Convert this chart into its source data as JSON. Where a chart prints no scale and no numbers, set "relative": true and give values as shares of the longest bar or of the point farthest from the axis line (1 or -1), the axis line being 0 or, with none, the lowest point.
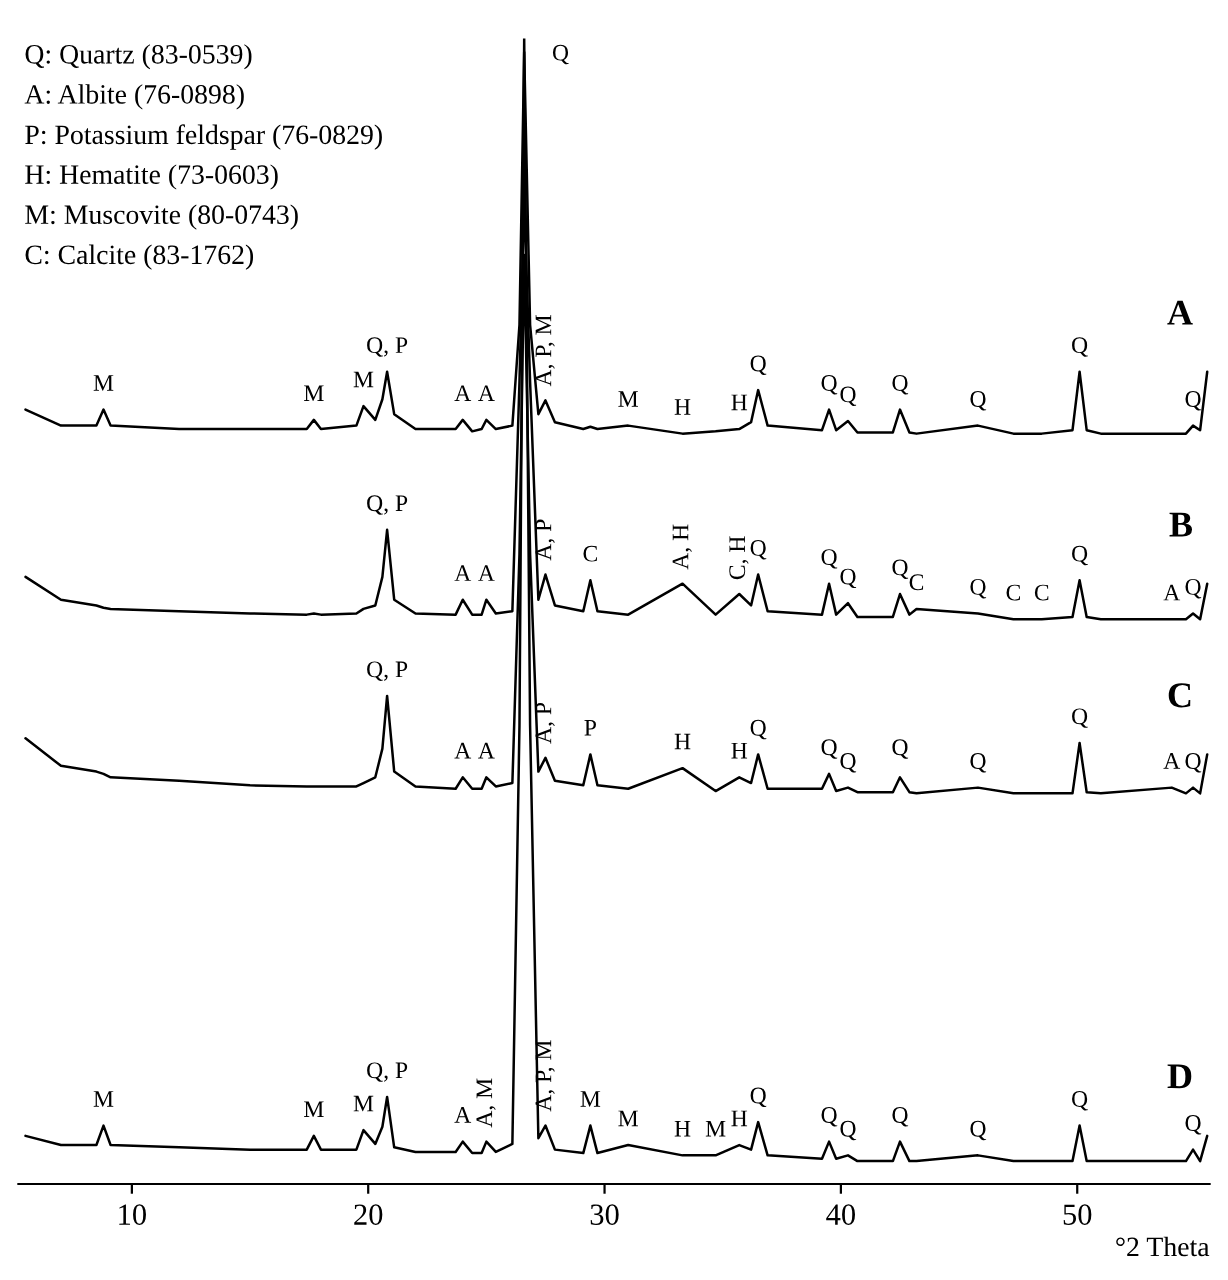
{
  "chart_data": {
    "type": "line",
    "relative": true,
    "xlabel": "°2 Theta",
    "tick_labels": "x",
    "grid": false,
    "xlim": [
      5.2,
      55.6
    ],
    "xticks": [
      10,
      20,
      30,
      40,
      50
    ],
    "x": [
      5.5,
      7,
      8.5,
      8.8,
      9.1,
      12,
      15,
      17.4,
      17.7,
      18,
      19.5,
      19.8,
      20.3,
      20.6,
      20.8,
      21.1,
      22,
      23.7,
      24,
      24.4,
      24.8,
      25,
      25.4,
      26.1,
      26.4,
      26.6,
      26.85,
      27.2,
      27.5,
      27.9,
      29.1,
      29.4,
      29.7,
      31,
      33.3,
      34.7,
      35.7,
      36.2,
      36.5,
      36.9,
      39.2,
      39.5,
      39.8,
      40.3,
      40.7,
      42.2,
      42.5,
      42.9,
      43.2,
      45.8,
      47.3,
      48.5,
      49.8,
      50.1,
      50.4,
      51,
      54,
      54.6,
      54.9,
      55.2,
      55.5
    ],
    "series": [
      {
        "name": "A",
        "color": "#000000",
        "values": [
          0.676,
          0.662,
          0.662,
          0.676,
          0.662,
          0.659,
          0.659,
          0.659,
          0.667,
          0.659,
          0.662,
          0.679,
          0.667,
          0.685,
          0.709,
          0.672,
          0.659,
          0.659,
          0.667,
          0.657,
          0.659,
          0.667,
          0.659,
          0.662,
          0.75,
          0.988,
          0.75,
          0.672,
          0.684,
          0.665,
          0.659,
          0.661,
          0.659,
          0.662,
          0.655,
          0.657,
          0.659,
          0.665,
          0.693,
          0.662,
          0.658,
          0.676,
          0.658,
          0.666,
          0.656,
          0.656,
          0.676,
          0.656,
          0.655,
          0.662,
          0.655,
          0.655,
          0.658,
          0.709,
          0.658,
          0.655,
          0.655,
          0.655,
          0.662,
          0.658,
          0.709
        ]
      },
      {
        "name": "B",
        "color": "#000000",
        "values": [
          0.53,
          0.51,
          0.505,
          0.503,
          0.502,
          0.5,
          0.498,
          0.497,
          0.498,
          0.497,
          0.498,
          0.502,
          0.505,
          0.53,
          0.571,
          0.51,
          0.498,
          0.497,
          0.51,
          0.497,
          0.497,
          0.51,
          0.498,
          0.5,
          0.7,
          0.861,
          0.7,
          0.51,
          0.532,
          0.505,
          0.5,
          0.527,
          0.5,
          0.497,
          0.524,
          0.497,
          0.515,
          0.505,
          0.532,
          0.5,
          0.497,
          0.524,
          0.497,
          0.507,
          0.495,
          0.495,
          0.515,
          0.497,
          0.502,
          0.498,
          0.493,
          0.493,
          0.495,
          0.527,
          0.495,
          0.493,
          0.493,
          0.493,
          0.498,
          0.493,
          0.524
        ]
      },
      {
        "name": "C",
        "color": "#000000",
        "values": [
          0.389,
          0.365,
          0.36,
          0.358,
          0.355,
          0.352,
          0.348,
          0.347,
          0.347,
          0.347,
          0.347,
          0.35,
          0.355,
          0.38,
          0.426,
          0.36,
          0.347,
          0.345,
          0.355,
          0.345,
          0.345,
          0.355,
          0.347,
          0.35,
          0.55,
          0.811,
          0.55,
          0.36,
          0.372,
          0.352,
          0.348,
          0.375,
          0.348,
          0.345,
          0.363,
          0.343,
          0.355,
          0.35,
          0.375,
          0.345,
          0.345,
          0.358,
          0.343,
          0.346,
          0.342,
          0.342,
          0.355,
          0.342,
          0.341,
          0.346,
          0.341,
          0.341,
          0.341,
          0.385,
          0.342,
          0.341,
          0.346,
          0.341,
          0.346,
          0.341,
          0.375
        ]
      },
      {
        "name": "D",
        "color": "#000000",
        "values": [
          0.042,
          0.034,
          0.034,
          0.051,
          0.034,
          0.032,
          0.03,
          0.03,
          0.042,
          0.03,
          0.03,
          0.047,
          0.035,
          0.05,
          0.076,
          0.032,
          0.028,
          0.028,
          0.037,
          0.027,
          0.027,
          0.037,
          0.028,
          0.035,
          0.4,
          1.0,
          0.4,
          0.04,
          0.051,
          0.03,
          0.027,
          0.051,
          0.027,
          0.034,
          0.025,
          0.025,
          0.034,
          0.03,
          0.054,
          0.025,
          0.022,
          0.037,
          0.022,
          0.025,
          0.02,
          0.02,
          0.037,
          0.02,
          0.02,
          0.025,
          0.02,
          0.02,
          0.02,
          0.051,
          0.02,
          0.02,
          0.02,
          0.02,
          0.03,
          0.02,
          0.042
        ]
      }
    ],
    "annotations": [
      "Q: Quartz (83-0539)",
      "A: Albite (76-0898)",
      "P: Potassium feldspar (76-0829)",
      "H: Hematite (73-0603)",
      "M: Muscovite (80-0743)",
      "C: Calcite (83-1762)",
      {
        "text": "Q",
        "x": 26.6,
        "y": 1.0
      },
      {
        "text": "M",
        "x": 8.8,
        "y": 0.676
      },
      {
        "text": "M",
        "x": 17.7,
        "y": 0.667
      },
      {
        "text": "M",
        "x": 19.8,
        "y": 0.679
      },
      {
        "text": "Q, P",
        "x": 20.8,
        "y": 0.709
      },
      {
        "text": "A",
        "x": 24,
        "y": 0.667
      },
      {
        "text": "A",
        "x": 25,
        "y": 0.667
      },
      {
        "text": "A, P, M",
        "x": 27.5,
        "y": 0.684
      },
      {
        "text": "M",
        "x": 31,
        "y": 0.662
      },
      {
        "text": "H",
        "x": 33.3,
        "y": 0.655
      },
      {
        "text": "H",
        "x": 35.7,
        "y": 0.659
      },
      {
        "text": "Q",
        "x": 36.5,
        "y": 0.693
      },
      {
        "text": "Q",
        "x": 39.5,
        "y": 0.676
      },
      {
        "text": "Q",
        "x": 40.3,
        "y": 0.666
      },
      {
        "text": "Q",
        "x": 42.5,
        "y": 0.676
      },
      {
        "text": "Q",
        "x": 45.8,
        "y": 0.662
      },
      {
        "text": "Q",
        "x": 50.1,
        "y": 0.709
      },
      {
        "text": "Q",
        "x": 54.9,
        "y": 0.662
      },
      {
        "text": "Q, P",
        "x": 20.8,
        "y": 0.571
      },
      {
        "text": "A",
        "x": 24,
        "y": 0.51
      },
      {
        "text": "A",
        "x": 25,
        "y": 0.51
      },
      {
        "text": "A, P",
        "x": 27.5,
        "y": 0.532
      },
      {
        "text": "C",
        "x": 29.4,
        "y": 0.527
      },
      {
        "text": "A, H",
        "x": 33.3,
        "y": 0.524
      },
      {
        "text": "C, H",
        "x": 35.7,
        "y": 0.515
      },
      {
        "text": "Q",
        "x": 36.5,
        "y": 0.532
      },
      {
        "text": "Q",
        "x": 39.5,
        "y": 0.524
      },
      {
        "text": "Q",
        "x": 40.3,
        "y": 0.507
      },
      {
        "text": "Q",
        "x": 42.5,
        "y": 0.515
      },
      {
        "text": "C",
        "x": 43.2,
        "y": 0.502
      },
      {
        "text": "Q",
        "x": 45.8,
        "y": 0.498
      },
      {
        "text": "C",
        "x": 47.3,
        "y": 0.493
      },
      {
        "text": "C",
        "x": 48.5,
        "y": 0.493
      },
      {
        "text": "Q",
        "x": 50.1,
        "y": 0.527
      },
      {
        "text": "A",
        "x": 54,
        "y": 0.493
      },
      {
        "text": "Q",
        "x": 54.9,
        "y": 0.498
      },
      {
        "text": "Q, P",
        "x": 20.8,
        "y": 0.426
      },
      {
        "text": "A",
        "x": 24,
        "y": 0.355
      },
      {
        "text": "A",
        "x": 25,
        "y": 0.355
      },
      {
        "text": "A, P",
        "x": 27.5,
        "y": 0.372
      },
      {
        "text": "P",
        "x": 29.4,
        "y": 0.375
      },
      {
        "text": "H",
        "x": 33.3,
        "y": 0.363
      },
      {
        "text": "H",
        "x": 35.7,
        "y": 0.355
      },
      {
        "text": "Q",
        "x": 36.5,
        "y": 0.375
      },
      {
        "text": "Q",
        "x": 39.5,
        "y": 0.358
      },
      {
        "text": "Q",
        "x": 40.3,
        "y": 0.346
      },
      {
        "text": "Q",
        "x": 42.5,
        "y": 0.358
      },
      {
        "text": "Q",
        "x": 45.8,
        "y": 0.346
      },
      {
        "text": "Q",
        "x": 50.1,
        "y": 0.385
      },
      {
        "text": "A",
        "x": 54,
        "y": 0.346
      },
      {
        "text": "Q",
        "x": 54.9,
        "y": 0.346
      },
      {
        "text": "M",
        "x": 8.8,
        "y": 0.051
      },
      {
        "text": "M",
        "x": 17.7,
        "y": 0.042
      },
      {
        "text": "M",
        "x": 19.8,
        "y": 0.047
      },
      {
        "text": "Q, P",
        "x": 20.8,
        "y": 0.076
      },
      {
        "text": "A",
        "x": 24,
        "y": 0.037
      },
      {
        "text": "A, M",
        "x": 25,
        "y": 0.037
      },
      {
        "text": "A, P, M",
        "x": 27.5,
        "y": 0.051
      },
      {
        "text": "M",
        "x": 29.4,
        "y": 0.051
      },
      {
        "text": "M",
        "x": 31,
        "y": 0.034
      },
      {
        "text": "H",
        "x": 33.3,
        "y": 0.025
      },
      {
        "text": "M",
        "x": 34.7,
        "y": 0.025
      },
      {
        "text": "H",
        "x": 35.7,
        "y": 0.034
      },
      {
        "text": "Q",
        "x": 36.5,
        "y": 0.054
      },
      {
        "text": "Q",
        "x": 39.5,
        "y": 0.037
      },
      {
        "text": "Q",
        "x": 40.3,
        "y": 0.025
      },
      {
        "text": "Q",
        "x": 42.5,
        "y": 0.037
      },
      {
        "text": "Q",
        "x": 45.8,
        "y": 0.025
      },
      {
        "text": "Q",
        "x": 50.1,
        "y": 0.051
      },
      {
        "text": "Q",
        "x": 54.9,
        "y": 0.03
      }
    ]
  }
}
